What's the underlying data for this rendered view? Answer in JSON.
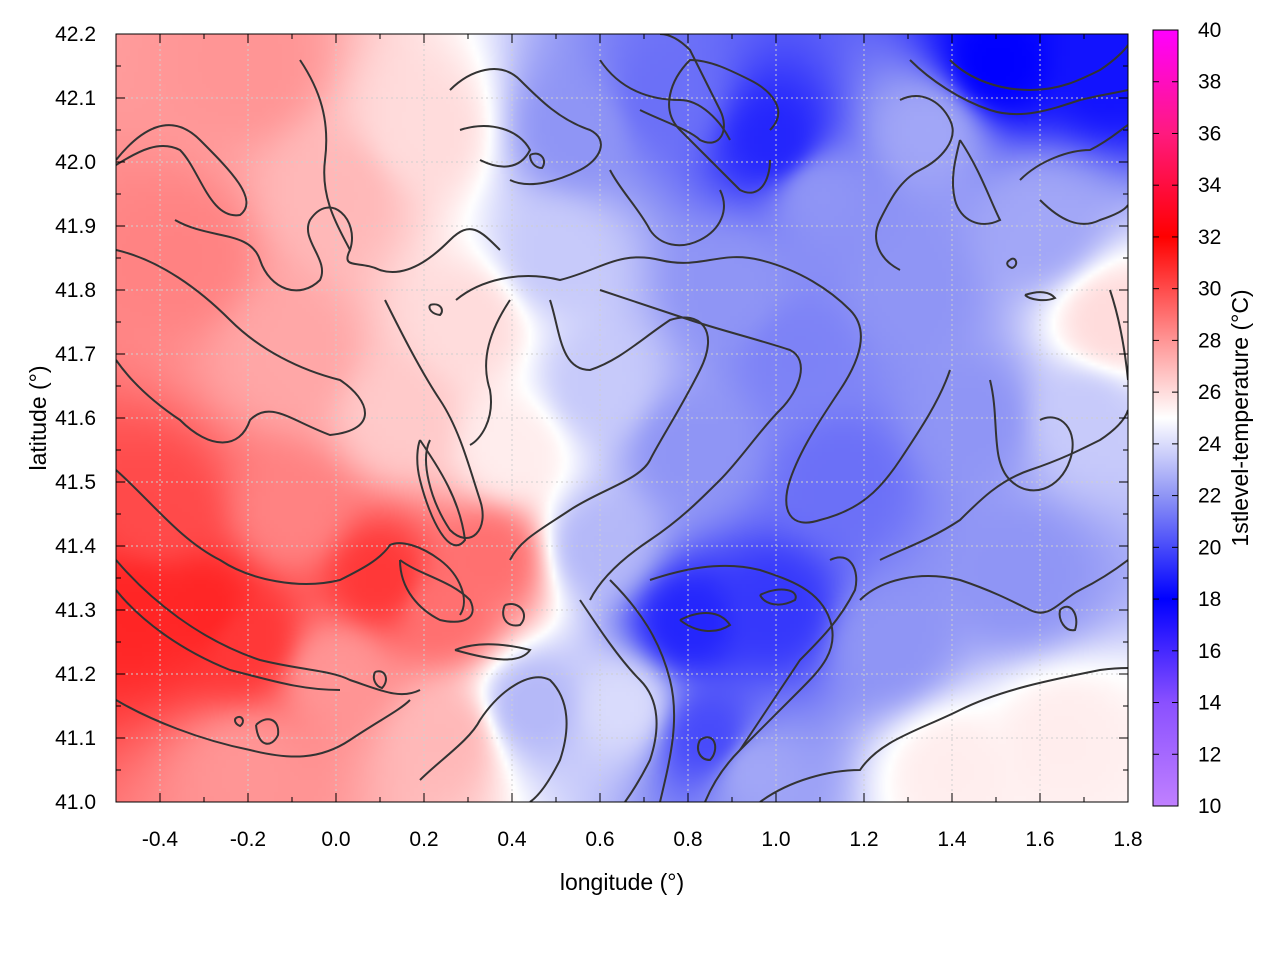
{
  "chart_data": {
    "type": "heatmap",
    "title": "",
    "xlabel": "longitude (°)",
    "ylabel": "latitude (°)",
    "colorbar_label": "1stlevel-temperature (°C)",
    "xlim": [
      -0.5,
      1.8
    ],
    "ylim": [
      41.0,
      42.2
    ],
    "x_ticks": [
      "-0.4",
      "-0.2",
      "0.0",
      "0.2",
      "0.4",
      "0.6",
      "0.8",
      "1.0",
      "1.2",
      "1.4",
      "1.6",
      "1.8"
    ],
    "x_tick_values": [
      -0.4,
      -0.2,
      0.0,
      0.2,
      0.4,
      0.6,
      0.8,
      1.0,
      1.2,
      1.4,
      1.6,
      1.8
    ],
    "y_ticks": [
      "41.0",
      "41.1",
      "41.2",
      "41.3",
      "41.4",
      "41.5",
      "41.6",
      "41.7",
      "41.8",
      "41.9",
      "42.0",
      "42.1",
      "42.2"
    ],
    "y_tick_values": [
      41.0,
      41.1,
      41.2,
      41.3,
      41.4,
      41.5,
      41.6,
      41.7,
      41.8,
      41.9,
      42.0,
      42.1,
      42.2
    ],
    "colorbar_ticks": [
      "10",
      "12",
      "14",
      "16",
      "18",
      "20",
      "22",
      "24",
      "26",
      "28",
      "30",
      "32",
      "34",
      "36",
      "38",
      "40"
    ],
    "colorbar_range": [
      10,
      40
    ],
    "colorbar_stops": [
      {
        "value": 10,
        "color": "#c080ff"
      },
      {
        "value": 14,
        "color": "#8a50ff"
      },
      {
        "value": 18,
        "color": "#0000ff"
      },
      {
        "value": 22,
        "color": "#8f95f5"
      },
      {
        "value": 25,
        "color": "#ffffff"
      },
      {
        "value": 28,
        "color": "#ff9595"
      },
      {
        "value": 32,
        "color": "#ff0000"
      },
      {
        "value": 36,
        "color": "#ff1a7f"
      },
      {
        "value": 40,
        "color": "#ff00ff"
      }
    ],
    "grid": true,
    "grid_color": "#cfcfcf",
    "contour_color": "#333333",
    "field_samples": [
      {
        "lon": -0.45,
        "lat": 41.3,
        "temp": 31
      },
      {
        "lon": -0.4,
        "lat": 41.45,
        "temp": 30
      },
      {
        "lon": -0.35,
        "lat": 41.85,
        "temp": 28.5
      },
      {
        "lon": -0.3,
        "lat": 41.3,
        "temp": 31
      },
      {
        "lon": -0.2,
        "lat": 41.25,
        "temp": 30.5
      },
      {
        "lon": -0.2,
        "lat": 42.15,
        "temp": 28
      },
      {
        "lon": -0.2,
        "lat": 41.05,
        "temp": 28
      },
      {
        "lon": -0.1,
        "lat": 41.7,
        "temp": 27.5
      },
      {
        "lon": -0.1,
        "lat": 41.45,
        "temp": 28.5
      },
      {
        "lon": 0.0,
        "lat": 41.95,
        "temp": 27
      },
      {
        "lon": 0.0,
        "lat": 41.2,
        "temp": 28
      },
      {
        "lon": 0.1,
        "lat": 41.35,
        "temp": 30.5
      },
      {
        "lon": 0.15,
        "lat": 41.6,
        "temp": 26.5
      },
      {
        "lon": 0.2,
        "lat": 42.05,
        "temp": 26
      },
      {
        "lon": 0.25,
        "lat": 41.3,
        "temp": 29
      },
      {
        "lon": 0.25,
        "lat": 41.1,
        "temp": 27
      },
      {
        "lon": 0.3,
        "lat": 41.75,
        "temp": 26
      },
      {
        "lon": 0.35,
        "lat": 41.38,
        "temp": 29
      },
      {
        "lon": 0.4,
        "lat": 41.55,
        "temp": 25.5
      },
      {
        "lon": 0.45,
        "lat": 41.15,
        "temp": 23
      },
      {
        "lon": 0.5,
        "lat": 41.85,
        "temp": 23.5
      },
      {
        "lon": 0.55,
        "lat": 42.05,
        "temp": 22
      },
      {
        "lon": 0.6,
        "lat": 41.4,
        "temp": 23
      },
      {
        "lon": 0.6,
        "lat": 41.65,
        "temp": 23.5
      },
      {
        "lon": 0.65,
        "lat": 41.15,
        "temp": 24
      },
      {
        "lon": 0.75,
        "lat": 42.1,
        "temp": 21
      },
      {
        "lon": 0.8,
        "lat": 41.28,
        "temp": 19
      },
      {
        "lon": 0.8,
        "lat": 41.55,
        "temp": 22
      },
      {
        "lon": 0.85,
        "lat": 41.1,
        "temp": 20
      },
      {
        "lon": 0.9,
        "lat": 41.8,
        "temp": 22
      },
      {
        "lon": 0.95,
        "lat": 41.05,
        "temp": 22.5
      },
      {
        "lon": 1.0,
        "lat": 41.3,
        "temp": 19.5
      },
      {
        "lon": 1.0,
        "lat": 42.03,
        "temp": 19
      },
      {
        "lon": 1.05,
        "lat": 41.7,
        "temp": 21.5
      },
      {
        "lon": 1.1,
        "lat": 41.95,
        "temp": 22
      },
      {
        "lon": 1.15,
        "lat": 41.5,
        "temp": 21
      },
      {
        "lon": 1.25,
        "lat": 41.25,
        "temp": 22
      },
      {
        "lon": 1.3,
        "lat": 41.8,
        "temp": 22
      },
      {
        "lon": 1.35,
        "lat": 42.05,
        "temp": 22.5
      },
      {
        "lon": 1.4,
        "lat": 41.05,
        "temp": 25.5
      },
      {
        "lon": 1.45,
        "lat": 41.6,
        "temp": 22
      },
      {
        "lon": 1.5,
        "lat": 42.15,
        "temp": 18
      },
      {
        "lon": 1.55,
        "lat": 41.35,
        "temp": 22
      },
      {
        "lon": 1.6,
        "lat": 41.9,
        "temp": 22.5
      },
      {
        "lon": 1.65,
        "lat": 41.1,
        "temp": 25.5
      },
      {
        "lon": 1.7,
        "lat": 41.6,
        "temp": 23.5
      },
      {
        "lon": 1.75,
        "lat": 42.15,
        "temp": 18.5
      },
      {
        "lon": 1.77,
        "lat": 41.75,
        "temp": 26
      }
    ]
  }
}
